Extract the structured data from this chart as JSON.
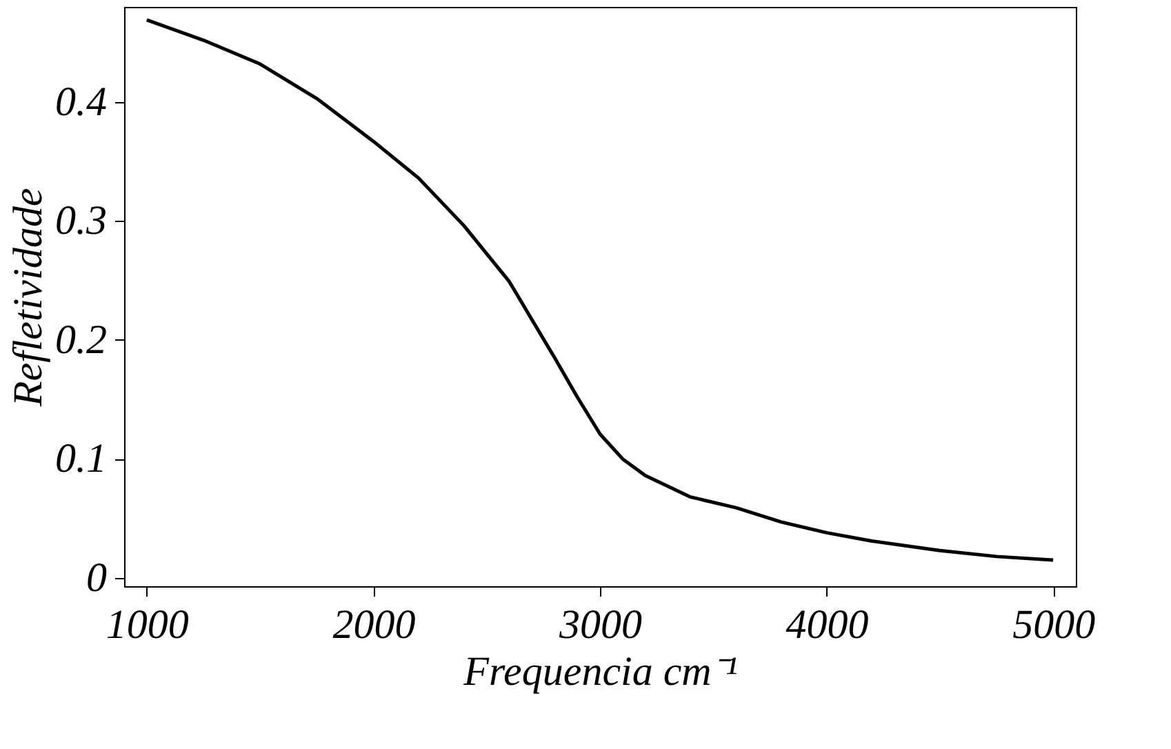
{
  "chart_data": {
    "type": "line",
    "xlabel": "Frequencia  cm⁻¹",
    "ylabel": "Refletividade",
    "x": [
      1000,
      1250,
      1500,
      1750,
      2000,
      2200,
      2400,
      2600,
      2800,
      2900,
      3000,
      3100,
      3200,
      3400,
      3600,
      3800,
      4000,
      4200,
      4500,
      4750,
      5000
    ],
    "series": [
      {
        "color": "#000000",
        "values": [
          0.469,
          0.452,
          0.432,
          0.403,
          0.367,
          0.336,
          0.296,
          0.249,
          0.185,
          0.152,
          0.121,
          0.1,
          0.086,
          0.068,
          0.059,
          0.047,
          0.038,
          0.031,
          0.023,
          0.018,
          0.015
        ]
      }
    ],
    "xlim": [
      900,
      5100
    ],
    "ylim": [
      -0.007,
      0.48
    ],
    "xticks": [
      1000,
      2000,
      3000,
      4000,
      5000
    ],
    "yticks": [
      0,
      0.1,
      0.2,
      0.3,
      0.4
    ],
    "grid": false,
    "legend": false,
    "line_style": "solid",
    "marker": "none"
  }
}
